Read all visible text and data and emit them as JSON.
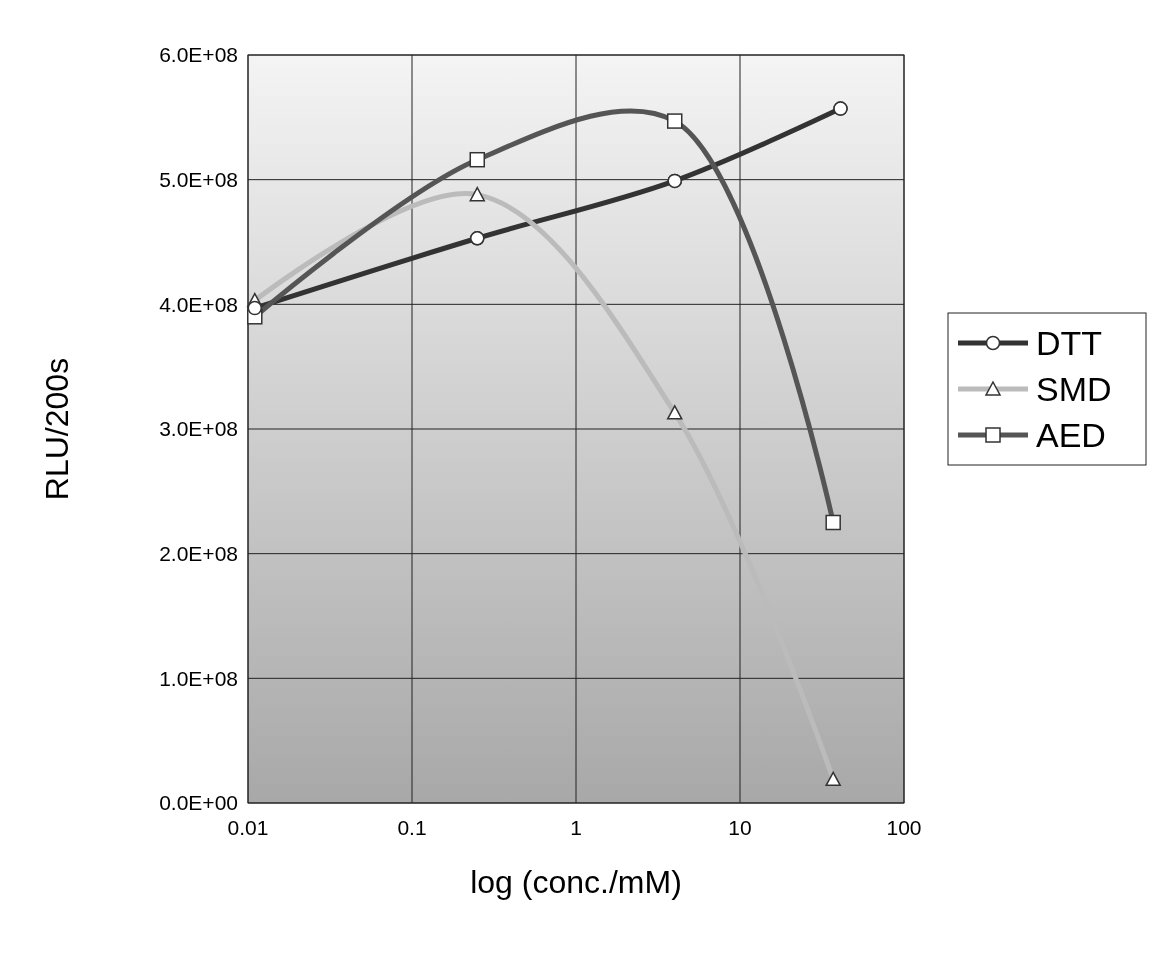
{
  "chart_data": {
    "type": "line",
    "xlabel": "log (conc./mM)",
    "ylabel": "RLU/200s",
    "log": "x",
    "xlim": [
      0.01,
      100
    ],
    "xticks": [
      0.01,
      0.1,
      1,
      10,
      100
    ],
    "ylim": [
      0,
      600000000
    ],
    "yticks": [
      {
        "value": 0,
        "label": "0.0E+00"
      },
      {
        "value": 100000000,
        "label": "1.0E+08"
      },
      {
        "value": 200000000,
        "label": "2.0E+08"
      },
      {
        "value": 300000000,
        "label": "3.0E+08"
      },
      {
        "value": 400000000,
        "label": "4.0E+08"
      },
      {
        "value": 500000000,
        "label": "5.0E+08"
      },
      {
        "value": 600000000,
        "label": "6.0E+08"
      }
    ],
    "grid": true,
    "legend": "right",
    "line_style": "solid",
    "series": [
      {
        "name": "DTT",
        "color": "#333333",
        "marker": "circle",
        "x": [
          0.011,
          0.25,
          4,
          41
        ],
        "values": [
          397000000,
          453000000,
          499000000,
          557000000
        ]
      },
      {
        "name": "SMD",
        "color": "#bbbbbb",
        "marker": "triangle",
        "x": [
          0.011,
          0.25,
          4,
          37
        ],
        "values": [
          403000000,
          488000000,
          313000000,
          19000000
        ]
      },
      {
        "name": "AED",
        "color": "#555555",
        "marker": "square",
        "x": [
          0.011,
          0.25,
          4,
          37
        ],
        "values": [
          390000000,
          516000000,
          547000000,
          225000000
        ]
      }
    ]
  }
}
